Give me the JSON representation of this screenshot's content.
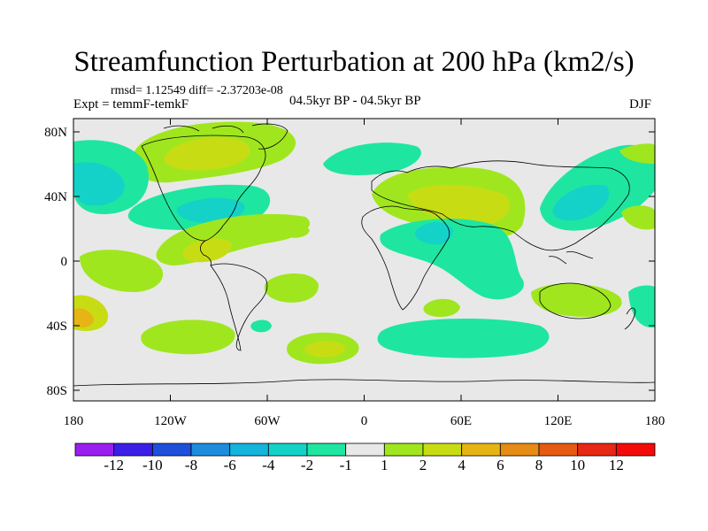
{
  "title": "Streamfunction Perturbation at 200 hPa (km2/s)",
  "stats": "rmsd= 1.12549 diff= -2.37203e-08",
  "experiment": "Expt = temmF-temkF",
  "period": "04.5kyr BP - 04.5kyr BP",
  "season": "DJF",
  "y_tick_labels": [
    "80N",
    "40N",
    "0",
    "40S",
    "80S"
  ],
  "x_tick_labels": [
    "180",
    "120W",
    "60W",
    "0",
    "60E",
    "120E",
    "180"
  ],
  "colorbar": {
    "labels": [
      "-12",
      "-10",
      "-8",
      "-6",
      "-4",
      "-2",
      "-1",
      "1",
      "2",
      "4",
      "6",
      "8",
      "10",
      "12"
    ],
    "colors": [
      "#9a1ef0",
      "#3c1fe6",
      "#1e50dc",
      "#1e8cdc",
      "#14b4dc",
      "#14d2c8",
      "#1ee6a0",
      "#e8e8e8",
      "#a0e61e",
      "#c8dc14",
      "#e6b414",
      "#e68c14",
      "#e65a14",
      "#e62814",
      "#f50a0a"
    ]
  },
  "background_color": "#e8e8e8"
}
